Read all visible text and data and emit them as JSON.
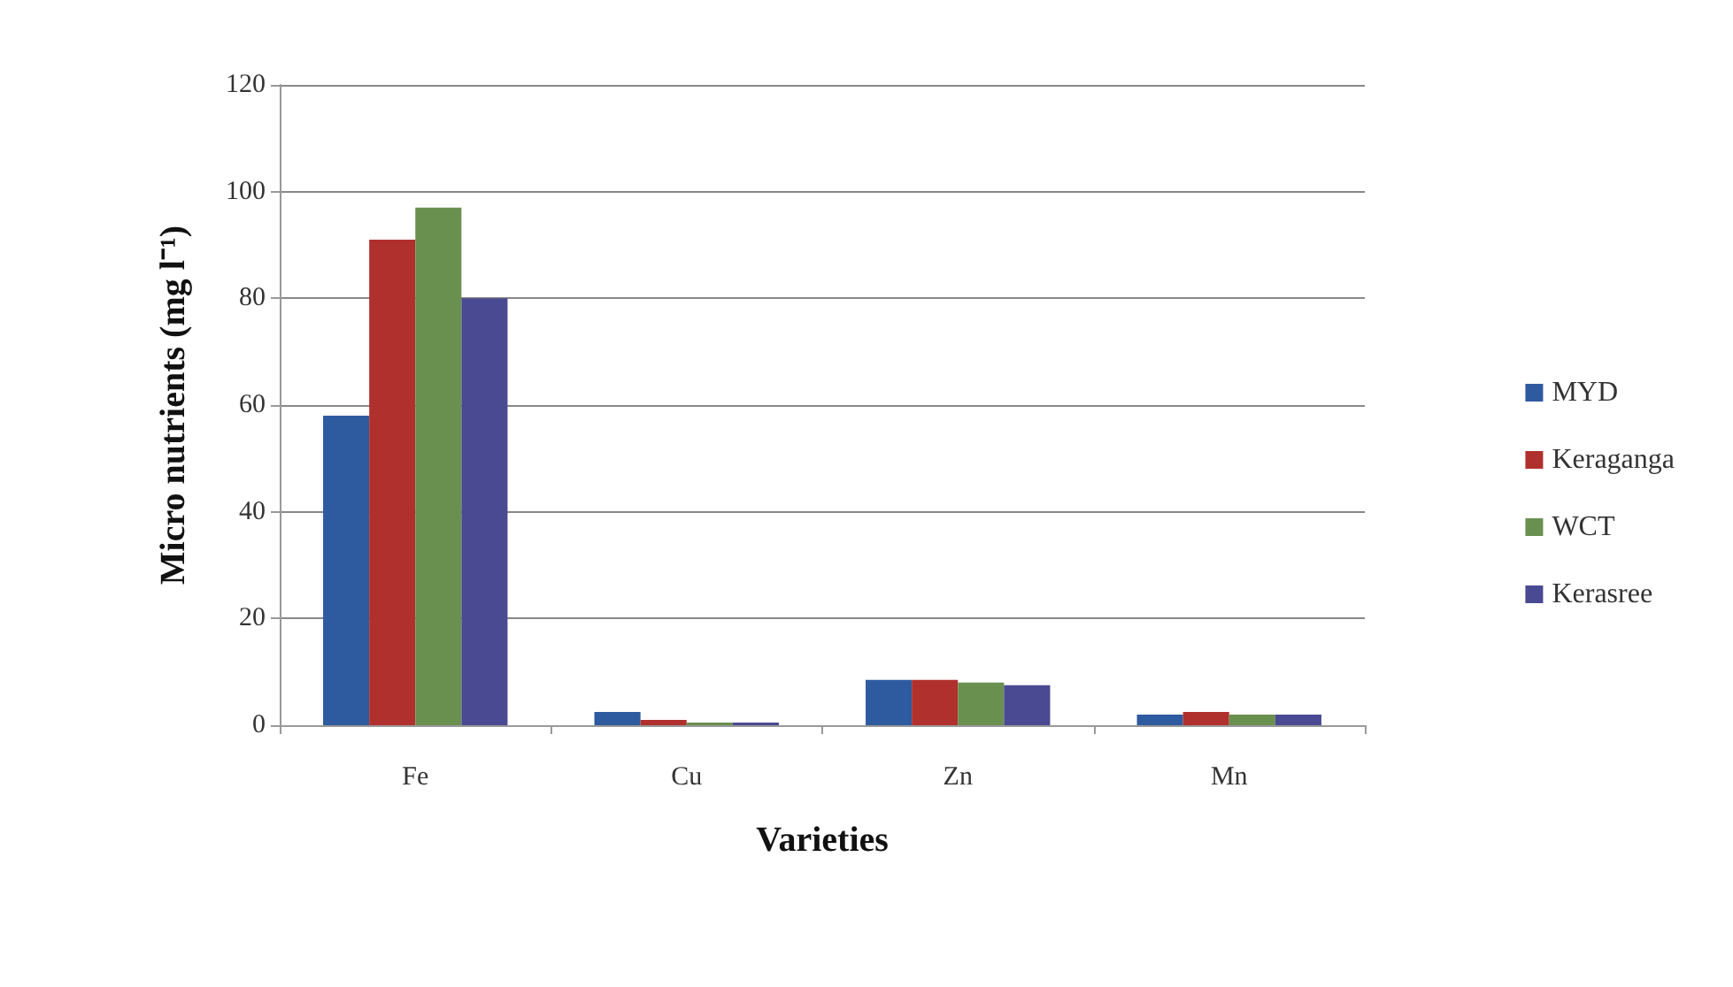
{
  "chart_data": {
    "type": "bar",
    "xlabel": "Varieties",
    "ylabel": "Micro nutrients (mg l⁻¹)",
    "categories": [
      "Fe",
      "Cu",
      "Zn",
      "Mn"
    ],
    "series": [
      {
        "name": "MYD",
        "color": "#2e5aa0",
        "values": [
          58,
          2.5,
          8.5,
          2
        ]
      },
      {
        "name": "Keraganga",
        "color": "#b0302e",
        "values": [
          91,
          1,
          8.5,
          2.5
        ]
      },
      {
        "name": "WCT",
        "color": "#6a9050",
        "values": [
          97,
          0.5,
          8,
          2
        ]
      },
      {
        "name": "Kerasree",
        "color": "#4a4a92",
        "values": [
          80,
          0.5,
          7.5,
          2
        ]
      }
    ],
    "ylim": [
      0,
      120
    ],
    "yticks": [
      0,
      20,
      40,
      60,
      80,
      100,
      120
    ],
    "grid": "y",
    "legend": "right"
  }
}
